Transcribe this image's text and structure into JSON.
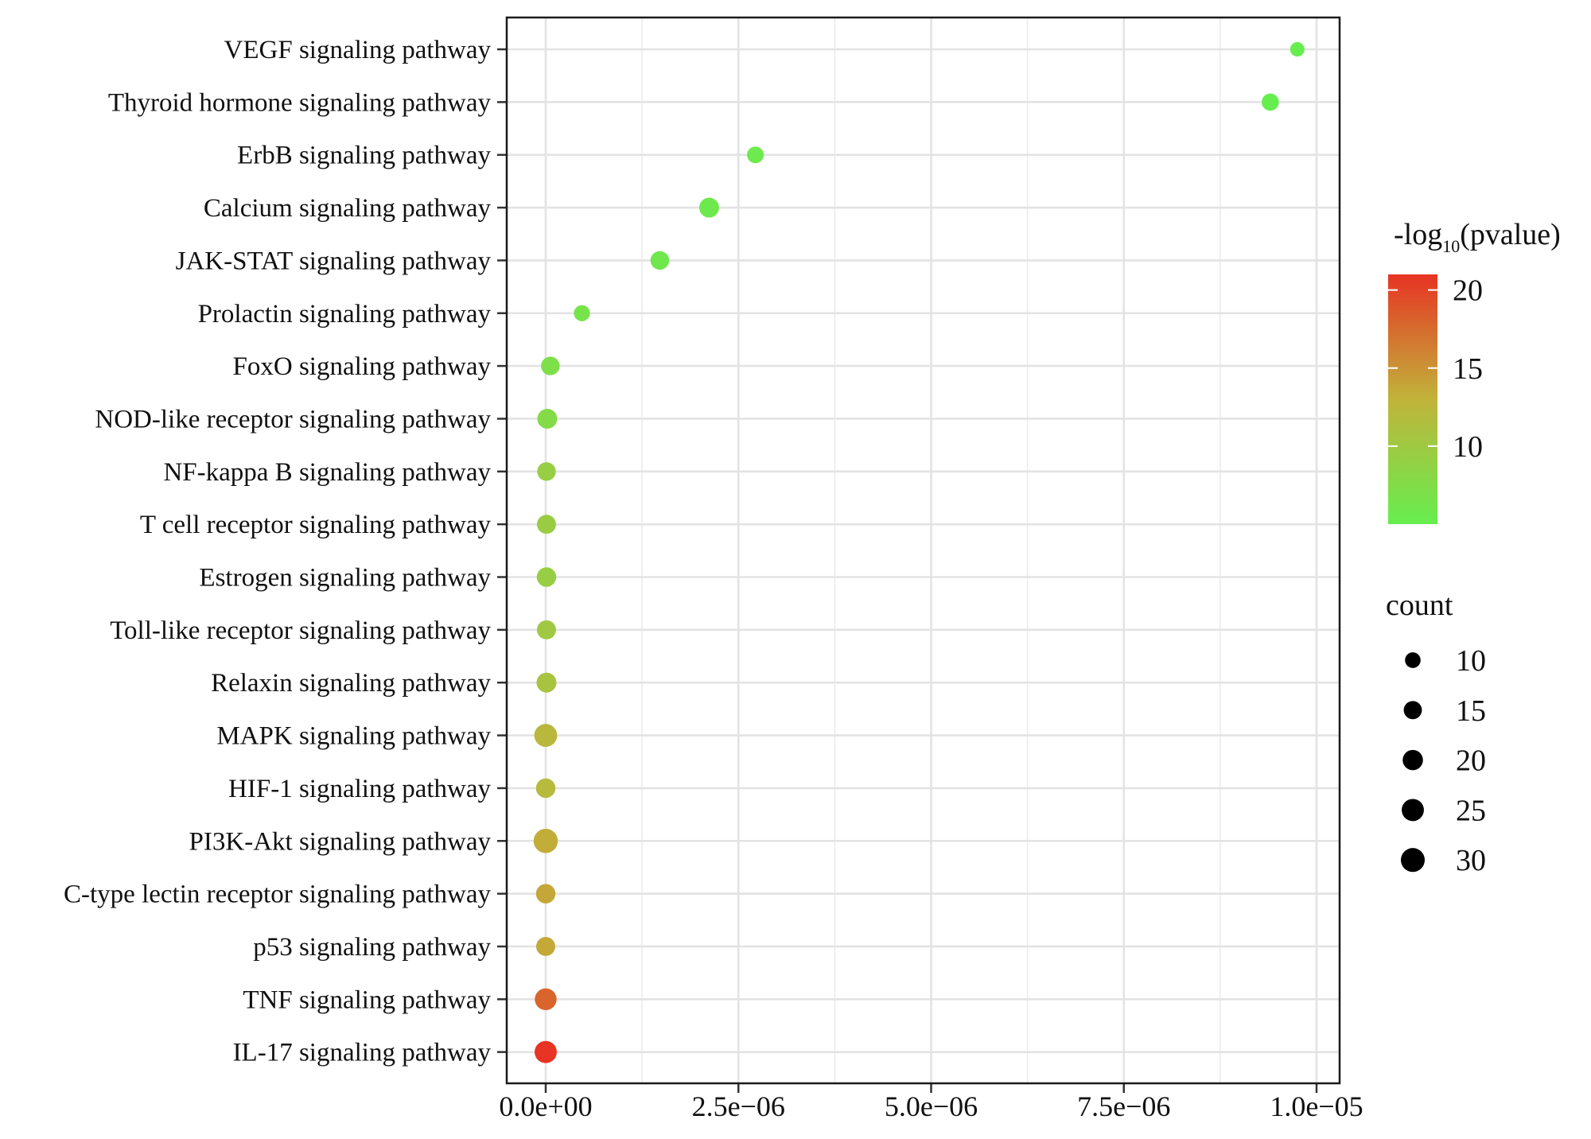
{
  "chart_data": {
    "type": "scatter",
    "title": "",
    "xlabel": "",
    "ylabel": "",
    "xlim": [
      -5e-07,
      1.025e-05
    ],
    "x_ticks": [
      0,
      2.5e-06,
      5e-06,
      7.5e-06,
      1e-05
    ],
    "x_tick_labels": [
      "0.0e+00",
      "2.5e−06",
      "5.0e−06",
      "7.5e−06",
      "1.0e−05"
    ],
    "grid": true,
    "categories": [
      "VEGF signaling pathway",
      "Thyroid hormone signaling pathway",
      "ErbB signaling pathway",
      "Calcium signaling pathway",
      "JAK-STAT signaling pathway",
      "Prolactin signaling pathway",
      "FoxO signaling pathway",
      "NOD-like receptor signaling pathway",
      "NF-kappa B signaling pathway",
      "T cell receptor signaling pathway",
      "Estrogen signaling pathway",
      "Toll-like receptor signaling pathway",
      "Relaxin signaling pathway",
      "MAPK signaling pathway",
      "HIF-1 signaling pathway",
      "PI3K-Akt signaling pathway",
      "C-type lectin receptor signaling pathway",
      "p53 signaling pathway",
      "TNF signaling pathway",
      "IL-17 signaling pathway"
    ],
    "points": [
      {
        "category": "VEGF signaling pathway",
        "x": 9.75e-06,
        "count": 8,
        "neglog10p": 5.0
      },
      {
        "category": "Thyroid hormone signaling pathway",
        "x": 9.4e-06,
        "count": 13,
        "neglog10p": 5.0
      },
      {
        "category": "ErbB signaling pathway",
        "x": 2.72e-06,
        "count": 12,
        "neglog10p": 5.6
      },
      {
        "category": "Calcium signaling pathway",
        "x": 2.12e-06,
        "count": 19,
        "neglog10p": 5.7
      },
      {
        "category": "JAK-STAT signaling pathway",
        "x": 1.48e-06,
        "count": 16,
        "neglog10p": 5.9
      },
      {
        "category": "Prolactin signaling pathway",
        "x": 4.7e-07,
        "count": 11,
        "neglog10p": 6.5
      },
      {
        "category": "FoxO signaling pathway",
        "x": 6e-08,
        "count": 16,
        "neglog10p": 7.0
      },
      {
        "category": "NOD-like receptor signaling pathway",
        "x": 2e-08,
        "count": 19,
        "neglog10p": 7.6
      },
      {
        "category": "NF-kappa B signaling pathway",
        "x": 1e-08,
        "count": 16,
        "neglog10p": 9.3
      },
      {
        "category": "T cell receptor signaling pathway",
        "x": 1e-08,
        "count": 17,
        "neglog10p": 9.6
      },
      {
        "category": "Estrogen signaling pathway",
        "x": 1e-08,
        "count": 18,
        "neglog10p": 9.3
      },
      {
        "category": "Toll-like receptor signaling pathway",
        "x": 1e-08,
        "count": 17,
        "neglog10p": 10.0
      },
      {
        "category": "Relaxin signaling pathway",
        "x": 1e-08,
        "count": 19,
        "neglog10p": 10.8
      },
      {
        "category": "MAPK signaling pathway",
        "x": 0,
        "count": 27,
        "neglog10p": 12.3
      },
      {
        "category": "HIF-1 signaling pathway",
        "x": 0,
        "count": 18,
        "neglog10p": 12.0
      },
      {
        "category": "PI3K-Akt signaling pathway",
        "x": 0,
        "count": 31,
        "neglog10p": 13.4
      },
      {
        "category": "C-type lectin receptor signaling pathway",
        "x": 0,
        "count": 18,
        "neglog10p": 13.8
      },
      {
        "category": "p53 signaling pathway",
        "x": 0,
        "count": 17,
        "neglog10p": 13.7
      },
      {
        "category": "TNF signaling pathway",
        "x": 0,
        "count": 24,
        "neglog10p": 18.0
      },
      {
        "category": "IL-17 signaling pathway",
        "x": 0,
        "count": 25,
        "neglog10p": 21.0
      }
    ],
    "color_scale": {
      "title_prefix": "-log",
      "title_subscript": "10",
      "title_suffix": "(pvalue)",
      "min": 5,
      "max": 21,
      "low_color": "#66ee4f",
      "mid_color": "#c1b33a",
      "high_color": "#e73424",
      "ticks": [
        10,
        15,
        20
      ],
      "tick_labels": [
        "10",
        "15",
        "20"
      ]
    },
    "size_scale": {
      "title": "count",
      "breaks": [
        10,
        15,
        20,
        25,
        30
      ],
      "labels": [
        "10",
        "15",
        "20",
        "25",
        "30"
      ]
    }
  }
}
